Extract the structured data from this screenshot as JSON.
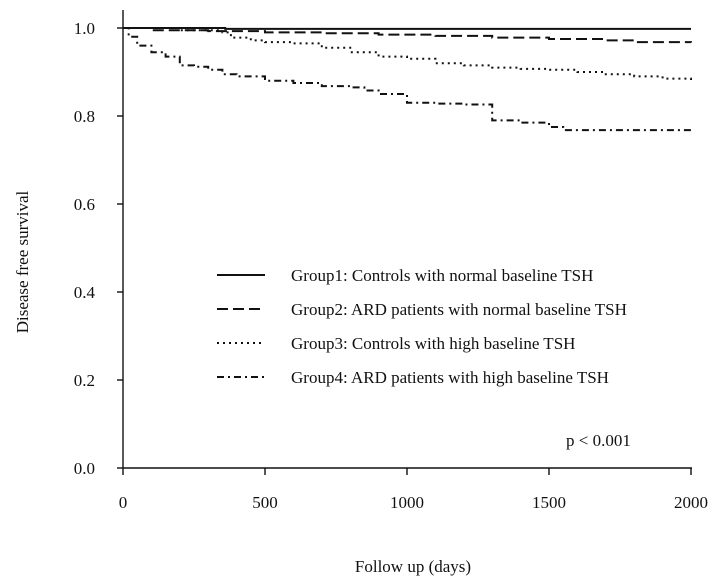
{
  "chart_data": {
    "type": "line",
    "xlabel": "Follow up (days)",
    "ylabel": "Disease free survival",
    "xlim": [
      0,
      2000
    ],
    "ylim": [
      0.0,
      1.0
    ],
    "xticks": [
      0,
      500,
      1000,
      1500,
      2000
    ],
    "yticks": [
      0.0,
      0.2,
      0.4,
      0.6,
      0.8,
      1.0
    ],
    "xtick_labels": [
      "0",
      "500",
      "1000",
      "1500",
      "2000"
    ],
    "ytick_labels": [
      "0.0",
      "0.2",
      "0.4",
      "0.6",
      "0.8",
      "1.0"
    ],
    "grid": false,
    "legend_position": "center-right",
    "annotation": "p < 0.001",
    "series": [
      {
        "name": "Group1: Controls with normal baseline TSH",
        "style": "solid",
        "color": "#111111",
        "x": [
          0,
          300,
          360,
          1100,
          2000
        ],
        "y": [
          1.0,
          1.0,
          0.998,
          0.998,
          0.998
        ]
      },
      {
        "name": "Group2: ARD patients with normal baseline TSH",
        "style": "dashed",
        "color": "#111111",
        "x": [
          0,
          100,
          300,
          500,
          700,
          900,
          1100,
          1300,
          1500,
          1700,
          1800,
          2000
        ],
        "y": [
          1.0,
          0.995,
          0.993,
          0.99,
          0.988,
          0.985,
          0.982,
          0.978,
          0.975,
          0.972,
          0.968,
          0.967
        ]
      },
      {
        "name": "Group3: Controls with high baseline TSH",
        "style": "dotted",
        "color": "#111111",
        "x": [
          0,
          200,
          350,
          380,
          450,
          500,
          600,
          700,
          800,
          900,
          1000,
          1100,
          1200,
          1300,
          1400,
          1500,
          1600,
          1700,
          1800,
          1900,
          2000
        ],
        "y": [
          1.0,
          0.995,
          0.99,
          0.978,
          0.972,
          0.968,
          0.965,
          0.955,
          0.945,
          0.935,
          0.93,
          0.92,
          0.915,
          0.91,
          0.907,
          0.905,
          0.9,
          0.895,
          0.89,
          0.885,
          0.88
        ]
      },
      {
        "name": "Group4: ARD patients with high baseline TSH",
        "style": "dashdot",
        "color": "#111111",
        "x": [
          0,
          20,
          50,
          100,
          150,
          200,
          250,
          300,
          350,
          400,
          500,
          600,
          700,
          800,
          850,
          900,
          1000,
          1100,
          1200,
          1250,
          1300,
          1400,
          1500,
          1550,
          1600,
          1700,
          1800,
          1900,
          2000
        ],
        "y": [
          1.0,
          0.98,
          0.96,
          0.945,
          0.935,
          0.915,
          0.912,
          0.905,
          0.895,
          0.89,
          0.88,
          0.875,
          0.868,
          0.865,
          0.858,
          0.85,
          0.83,
          0.828,
          0.826,
          0.826,
          0.79,
          0.785,
          0.775,
          0.768,
          0.768,
          0.768,
          0.768,
          0.768,
          0.768
        ]
      }
    ]
  }
}
